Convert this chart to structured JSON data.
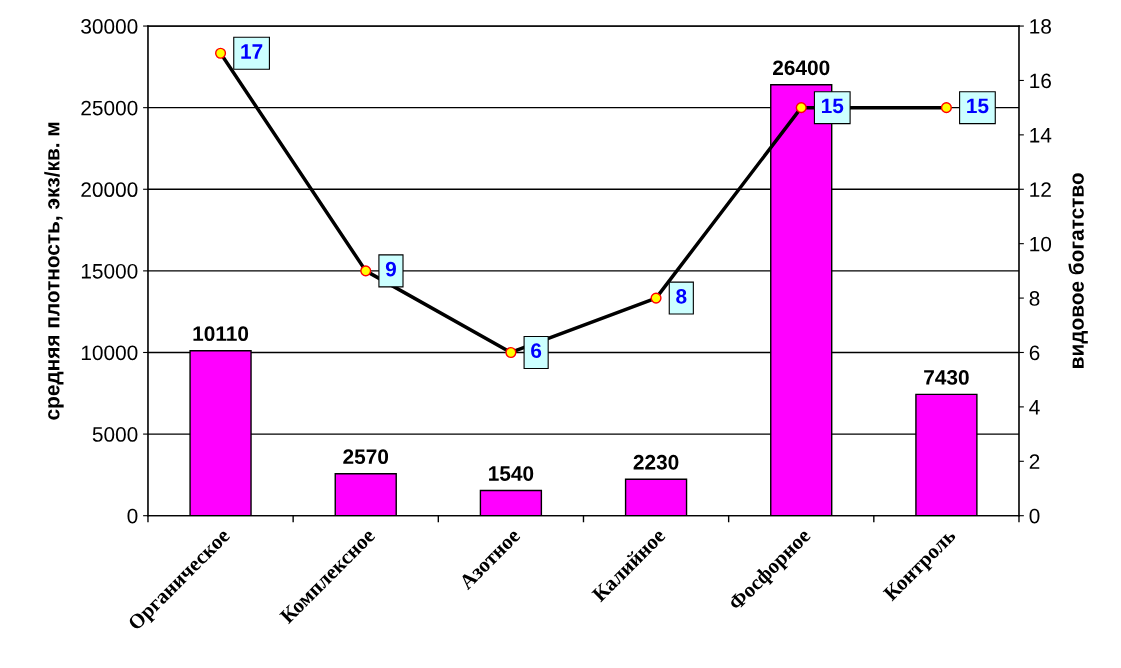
{
  "chart_data": {
    "type": "bar",
    "categories": [
      "Органическое",
      "Комплексное",
      "Азотное",
      "Калийное",
      "Фосфорное",
      "Контроль"
    ],
    "ylabel": "средняя плотность, экз/кв. м",
    "y2label": "видовое богатство",
    "series": [
      {
        "color": "#ff00ff",
        "values": [
          10110,
          2570,
          1540,
          2230,
          26400,
          7430
        ]
      },
      {
        "type": "line",
        "axis": "y2",
        "color": "#000000",
        "marker": "circle",
        "values": [
          17,
          9,
          6,
          8,
          15,
          15
        ]
      }
    ],
    "data_labels": true,
    "grid": "y",
    "legend": false,
    "ylim": [
      0,
      30000
    ],
    "yticks": [
      0,
      5000,
      10000,
      15000,
      20000,
      25000,
      30000
    ],
    "y2lim": [
      0,
      18
    ],
    "y2ticks": [
      0,
      2,
      4,
      6,
      8,
      10,
      12,
      14,
      16,
      18
    ]
  }
}
